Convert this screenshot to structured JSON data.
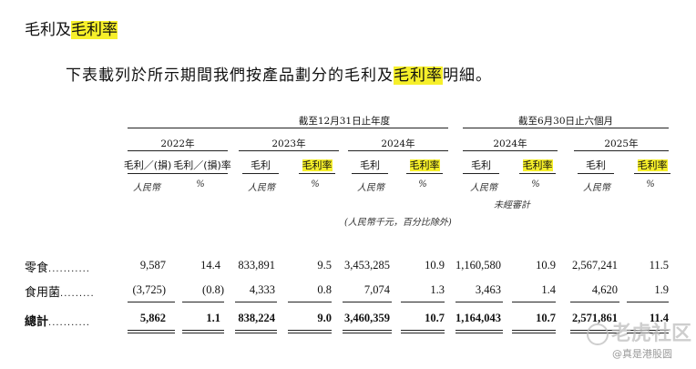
{
  "title": {
    "prefix": "毛利及",
    "highlight": "毛利率"
  },
  "intro": {
    "text": "下表載列於所示期間我們按產品劃分的毛利及",
    "highlight": "毛利率",
    "suffix": "明細。"
  },
  "groups": {
    "annual": "截至12月31日止年度",
    "six_month": "截至6月30日止六個月"
  },
  "years": [
    "2022年",
    "2023年",
    "2024年",
    "2024年",
    "2025年"
  ],
  "col_headers": [
    {
      "label": "毛利／(損)",
      "highlight": false
    },
    {
      "label": "毛利／(損)率",
      "highlight": false
    },
    {
      "label": "毛利",
      "highlight": false
    },
    {
      "label": "毛利率",
      "highlight": true
    },
    {
      "label": "毛利",
      "highlight": false
    },
    {
      "label": "毛利率",
      "highlight": true
    },
    {
      "label": "毛利",
      "highlight": false
    },
    {
      "label": "毛利率",
      "highlight": true
    },
    {
      "label": "毛利",
      "highlight": false
    },
    {
      "label": "毛利率",
      "highlight": true
    }
  ],
  "units": [
    "人民幣",
    "%",
    "人民幣",
    "%",
    "人民幣",
    "%",
    "人民幣",
    "%",
    "人民幣",
    "%"
  ],
  "unaudited": "未經審計",
  "unit_note": "(人民幣千元，百分比除外)",
  "rows": [
    {
      "label": "零食",
      "dots": "...........",
      "values": [
        "9,587",
        "14.4",
        "833,891",
        "9.5",
        "3,453,285",
        "10.9",
        "1,160,580",
        "10.9",
        "2,567,241",
        "11.5"
      ]
    },
    {
      "label": "食用菌",
      "dots": ".........",
      "values": [
        "(3,725)",
        "(0.8)",
        "4,333",
        "0.8",
        "7,074",
        "1.3",
        "3,463",
        "1.4",
        "4,620",
        "1.9"
      ]
    },
    {
      "label": "總計",
      "dots": "...........",
      "values": [
        "5,862",
        "1.1",
        "838,224",
        "9.0",
        "3,460,359",
        "10.7",
        "1,164,043",
        "10.7",
        "2,571,861",
        "11.4"
      ]
    }
  ],
  "watermark": {
    "main": "老虎社区",
    "sub": "@真是港股圆"
  }
}
